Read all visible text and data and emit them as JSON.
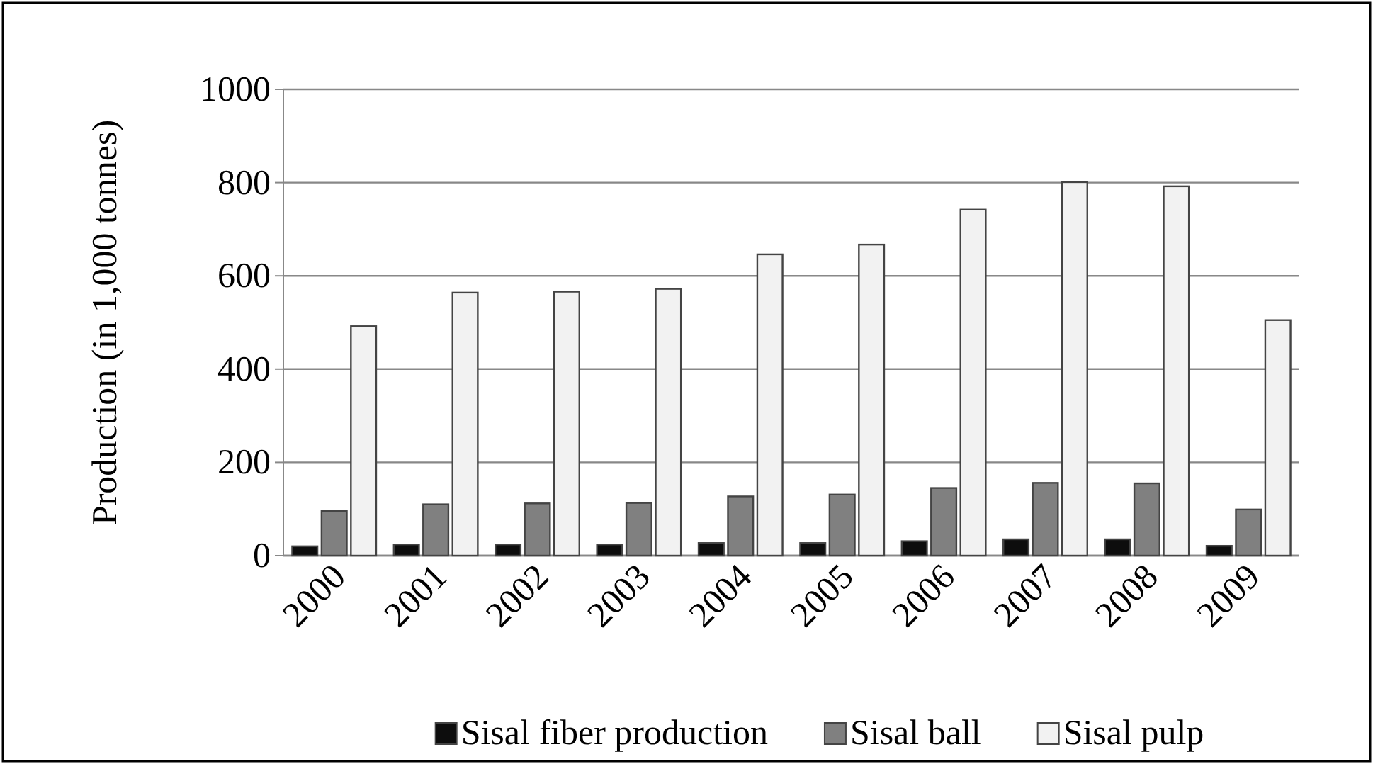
{
  "chart_data": {
    "type": "bar",
    "ylabel": "Production (in 1,000 tonnes)",
    "categories": [
      "2000",
      "2001",
      "2002",
      "2003",
      "2004",
      "2005",
      "2006",
      "2007",
      "2008",
      "2009"
    ],
    "series": [
      {
        "name": "Sisal fiber production",
        "color": "#0d0d0d",
        "values": [
          20,
          24,
          24,
          24,
          27,
          27,
          31,
          35,
          35,
          21
        ]
      },
      {
        "name": "Sisal ball",
        "color": "#808080",
        "values": [
          96,
          110,
          112,
          113,
          127,
          131,
          145,
          156,
          155,
          99
        ]
      },
      {
        "name": "Sisal pulp",
        "color": "#f2f2f2",
        "values": [
          492,
          564,
          566,
          572,
          646,
          667,
          742,
          801,
          792,
          505
        ]
      }
    ],
    "ylim": [
      0,
      1000
    ],
    "yticks": [
      0,
      200,
      400,
      600,
      800,
      1000
    ],
    "grid": "y",
    "legend": "bottom"
  }
}
